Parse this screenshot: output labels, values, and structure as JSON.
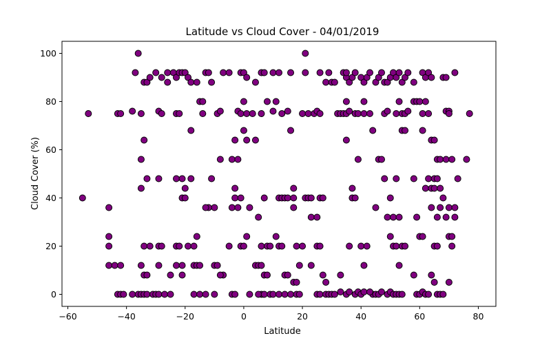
{
  "chart_data": {
    "type": "scatter",
    "title": "Latitude vs Cloud Cover - 04/01/2019",
    "xlabel": "Latitude",
    "ylabel": "Cloud Cover (%)",
    "xlim": [
      -62,
      86
    ],
    "ylim": [
      -5,
      105
    ],
    "xticks": [
      -60,
      -40,
      -20,
      0,
      20,
      40,
      60,
      80
    ],
    "yticks": [
      0,
      20,
      40,
      60,
      80,
      100
    ],
    "grid": false,
    "legend": "none",
    "marker_color": "#800080",
    "marker_edge_color": "#000000",
    "points": [
      [
        -55,
        40
      ],
      [
        -53,
        75
      ],
      [
        -46,
        36
      ],
      [
        -46,
        24
      ],
      [
        -46,
        20
      ],
      [
        -46,
        12
      ],
      [
        -44,
        12
      ],
      [
        -42,
        12
      ],
      [
        -43,
        0
      ],
      [
        -42,
        0
      ],
      [
        -41,
        0
      ],
      [
        -43,
        75
      ],
      [
        -42,
        75
      ],
      [
        -38,
        76
      ],
      [
        -37,
        92
      ],
      [
        -36,
        100
      ],
      [
        -35,
        75
      ],
      [
        -35,
        56
      ],
      [
        -34,
        64
      ],
      [
        -34,
        88
      ],
      [
        -33,
        88
      ],
      [
        -32,
        90
      ],
      [
        -33,
        48
      ],
      [
        -35,
        44
      ],
      [
        -35,
        12
      ],
      [
        -34,
        20
      ],
      [
        -32,
        20
      ],
      [
        -34,
        8
      ],
      [
        -33,
        8
      ],
      [
        -38,
        0
      ],
      [
        -36,
        0
      ],
      [
        -35,
        0
      ],
      [
        -34,
        0
      ],
      [
        -33,
        0
      ],
      [
        -31,
        0
      ],
      [
        -30,
        0
      ],
      [
        -29,
        0
      ],
      [
        -30,
        92
      ],
      [
        -29,
        76
      ],
      [
        -28,
        75
      ],
      [
        -28,
        90
      ],
      [
        -26,
        92
      ],
      [
        -26,
        88
      ],
      [
        -24,
        92
      ],
      [
        -23,
        90
      ],
      [
        -23,
        75
      ],
      [
        -22,
        75
      ],
      [
        -22,
        92
      ],
      [
        -21,
        92
      ],
      [
        -20,
        92
      ],
      [
        -19,
        90
      ],
      [
        -18,
        88
      ],
      [
        -16,
        88
      ],
      [
        -18,
        68
      ],
      [
        -15,
        80
      ],
      [
        -14,
        80
      ],
      [
        -13,
        92
      ],
      [
        -12,
        92
      ],
      [
        -11,
        88
      ],
      [
        -14,
        75
      ],
      [
        -29,
        48
      ],
      [
        -23,
        48
      ],
      [
        -21,
        48
      ],
      [
        -20,
        44
      ],
      [
        -21,
        40
      ],
      [
        -20,
        40
      ],
      [
        -18,
        48
      ],
      [
        -29,
        20
      ],
      [
        -28,
        20
      ],
      [
        -23,
        20
      ],
      [
        -22,
        20
      ],
      [
        -19,
        20
      ],
      [
        -17,
        20
      ],
      [
        -16,
        24
      ],
      [
        -23,
        12
      ],
      [
        -21,
        12
      ],
      [
        -17,
        12
      ],
      [
        -16,
        12
      ],
      [
        -15,
        12
      ],
      [
        -25,
        8
      ],
      [
        -21,
        8
      ],
      [
        -29,
        12
      ],
      [
        -27,
        0
      ],
      [
        -25,
        0
      ],
      [
        -17,
        0
      ],
      [
        -15,
        0
      ],
      [
        -13,
        0
      ],
      [
        -10,
        36
      ],
      [
        -12,
        36
      ],
      [
        -13,
        36
      ],
      [
        -11,
        48
      ],
      [
        -9,
        75
      ],
      [
        -8,
        76
      ],
      [
        -8,
        56
      ],
      [
        -7,
        8
      ],
      [
        -8,
        8
      ],
      [
        -7,
        92
      ],
      [
        -5,
        92
      ],
      [
        -4,
        56
      ],
      [
        -2,
        56
      ],
      [
        -3,
        44
      ],
      [
        -3,
        64
      ],
      [
        -4,
        36
      ],
      [
        -2,
        36
      ],
      [
        -3,
        40
      ],
      [
        -1,
        40
      ],
      [
        -2,
        76
      ],
      [
        -1,
        75
      ],
      [
        -1,
        92
      ],
      [
        0,
        92
      ],
      [
        1,
        90
      ],
      [
        0,
        68
      ],
      [
        0,
        80
      ],
      [
        1,
        64
      ],
      [
        1,
        75
      ],
      [
        -5,
        20
      ],
      [
        -1,
        20
      ],
      [
        0,
        20
      ],
      [
        1,
        24
      ],
      [
        2,
        36
      ],
      [
        -10,
        12
      ],
      [
        -9,
        12
      ],
      [
        -4,
        0
      ],
      [
        -3,
        0
      ],
      [
        -10,
        0
      ],
      [
        2,
        0
      ],
      [
        3,
        75
      ],
      [
        4,
        88
      ],
      [
        4,
        64
      ],
      [
        4,
        12
      ],
      [
        5,
        12
      ],
      [
        6,
        12
      ],
      [
        5,
        32
      ],
      [
        6,
        20
      ],
      [
        6,
        92
      ],
      [
        7,
        92
      ],
      [
        8,
        80
      ],
      [
        6,
        75
      ],
      [
        7,
        40
      ],
      [
        8,
        20
      ],
      [
        9,
        20
      ],
      [
        7,
        8
      ],
      [
        8,
        8
      ],
      [
        6,
        0
      ],
      [
        5,
        0
      ],
      [
        7,
        0
      ],
      [
        9,
        0
      ],
      [
        10,
        0
      ],
      [
        10,
        76
      ],
      [
        10,
        92
      ],
      [
        12,
        92
      ],
      [
        11,
        80
      ],
      [
        13,
        75
      ],
      [
        11,
        24
      ],
      [
        12,
        20
      ],
      [
        13,
        20
      ],
      [
        12,
        40
      ],
      [
        13,
        40
      ],
      [
        14,
        40
      ],
      [
        15,
        40
      ],
      [
        15,
        76
      ],
      [
        16,
        92
      ],
      [
        16,
        68
      ],
      [
        17,
        36
      ],
      [
        17,
        44
      ],
      [
        17,
        40
      ],
      [
        18,
        20
      ],
      [
        17,
        5
      ],
      [
        18,
        5
      ],
      [
        14,
        8
      ],
      [
        15,
        8
      ],
      [
        12,
        0
      ],
      [
        14,
        0
      ],
      [
        16,
        0
      ],
      [
        18,
        0
      ],
      [
        19,
        0
      ],
      [
        19,
        12
      ],
      [
        20,
        20
      ],
      [
        21,
        92
      ],
      [
        21,
        100
      ],
      [
        20,
        75
      ],
      [
        22,
        75
      ],
      [
        24,
        75
      ],
      [
        25,
        76
      ],
      [
        26,
        75
      ],
      [
        21,
        40
      ],
      [
        22,
        40
      ],
      [
        23,
        40
      ],
      [
        26,
        40
      ],
      [
        27,
        40
      ],
      [
        23,
        32
      ],
      [
        25,
        32
      ],
      [
        25,
        20
      ],
      [
        26,
        20
      ],
      [
        27,
        8
      ],
      [
        28,
        5
      ],
      [
        23,
        12
      ],
      [
        25,
        0
      ],
      [
        26,
        0
      ],
      [
        28,
        0
      ],
      [
        29,
        0
      ],
      [
        30,
        0
      ],
      [
        26,
        92
      ],
      [
        28,
        88
      ],
      [
        29,
        92
      ],
      [
        30,
        88
      ],
      [
        31,
        88
      ],
      [
        32,
        75
      ],
      [
        33,
        75
      ],
      [
        34,
        92
      ],
      [
        35,
        90
      ],
      [
        35,
        92
      ],
      [
        36,
        88
      ],
      [
        37,
        90
      ],
      [
        35,
        80
      ],
      [
        34,
        75
      ],
      [
        35,
        75
      ],
      [
        36,
        76
      ],
      [
        38,
        75
      ],
      [
        39,
        75
      ],
      [
        35,
        64
      ],
      [
        37,
        44
      ],
      [
        37,
        40
      ],
      [
        38,
        40
      ],
      [
        39,
        56
      ],
      [
        36,
        20
      ],
      [
        33,
        8
      ],
      [
        31,
        0
      ],
      [
        33,
        1
      ],
      [
        35,
        0
      ],
      [
        36,
        1
      ],
      [
        38,
        0
      ],
      [
        39,
        1
      ],
      [
        40,
        0
      ],
      [
        41,
        1
      ],
      [
        38,
        92
      ],
      [
        40,
        90
      ],
      [
        41,
        88
      ],
      [
        42,
        90
      ],
      [
        43,
        92
      ],
      [
        41,
        80
      ],
      [
        41,
        75
      ],
      [
        43,
        75
      ],
      [
        44,
        68
      ],
      [
        45,
        36
      ],
      [
        40,
        20
      ],
      [
        42,
        20
      ],
      [
        41,
        12
      ],
      [
        44,
        0
      ],
      [
        45,
        0
      ],
      [
        43,
        1
      ],
      [
        46,
        0
      ],
      [
        47,
        1
      ],
      [
        45,
        88
      ],
      [
        46,
        90
      ],
      [
        47,
        92
      ],
      [
        48,
        88
      ],
      [
        49,
        88
      ],
      [
        48,
        75
      ],
      [
        49,
        76
      ],
      [
        46,
        56
      ],
      [
        47,
        56
      ],
      [
        48,
        48
      ],
      [
        49,
        32
      ],
      [
        50,
        40
      ],
      [
        50,
        24
      ],
      [
        51,
        20
      ],
      [
        52,
        20
      ],
      [
        51,
        32
      ],
      [
        52,
        48
      ],
      [
        53,
        12
      ],
      [
        49,
        0
      ],
      [
        50,
        1
      ],
      [
        51,
        0
      ],
      [
        52,
        0
      ],
      [
        53,
        0
      ],
      [
        54,
        0
      ],
      [
        50,
        90
      ],
      [
        51,
        92
      ],
      [
        52,
        90
      ],
      [
        53,
        92
      ],
      [
        54,
        88
      ],
      [
        55,
        90
      ],
      [
        56,
        92
      ],
      [
        52,
        75
      ],
      [
        53,
        80
      ],
      [
        54,
        75
      ],
      [
        55,
        75
      ],
      [
        56,
        76
      ],
      [
        54,
        68
      ],
      [
        55,
        68
      ],
      [
        53,
        32
      ],
      [
        54,
        20
      ],
      [
        55,
        20
      ],
      [
        58,
        88
      ],
      [
        58,
        80
      ],
      [
        59,
        80
      ],
      [
        60,
        80
      ],
      [
        61,
        75
      ],
      [
        62,
        80
      ],
      [
        58,
        48
      ],
      [
        59,
        32
      ],
      [
        60,
        24
      ],
      [
        61,
        24
      ],
      [
        58,
        8
      ],
      [
        59,
        0
      ],
      [
        60,
        0
      ],
      [
        61,
        1
      ],
      [
        62,
        0
      ],
      [
        63,
        0
      ],
      [
        61,
        92
      ],
      [
        62,
        90
      ],
      [
        63,
        92
      ],
      [
        64,
        90
      ],
      [
        61,
        68
      ],
      [
        62,
        44
      ],
      [
        63,
        48
      ],
      [
        64,
        44
      ],
      [
        65,
        44
      ],
      [
        63,
        75
      ],
      [
        64,
        64
      ],
      [
        65,
        64
      ],
      [
        66,
        56
      ],
      [
        67,
        56
      ],
      [
        65,
        48
      ],
      [
        66,
        48
      ],
      [
        67,
        44
      ],
      [
        64,
        36
      ],
      [
        66,
        32
      ],
      [
        65,
        20
      ],
      [
        66,
        20
      ],
      [
        64,
        8
      ],
      [
        65,
        5
      ],
      [
        66,
        0
      ],
      [
        67,
        0
      ],
      [
        68,
        0
      ],
      [
        68,
        40
      ],
      [
        69,
        56
      ],
      [
        69,
        76
      ],
      [
        70,
        76
      ],
      [
        70,
        75
      ],
      [
        71,
        56
      ],
      [
        69,
        32
      ],
      [
        70,
        36
      ],
      [
        70,
        24
      ],
      [
        71,
        24
      ],
      [
        72,
        36
      ],
      [
        72,
        32
      ],
      [
        71,
        20
      ],
      [
        70,
        5
      ],
      [
        72,
        92
      ],
      [
        73,
        48
      ],
      [
        76,
        56
      ],
      [
        77,
        75
      ],
      [
        68,
        90
      ],
      [
        69,
        90
      ],
      [
        67,
        36
      ]
    ]
  }
}
